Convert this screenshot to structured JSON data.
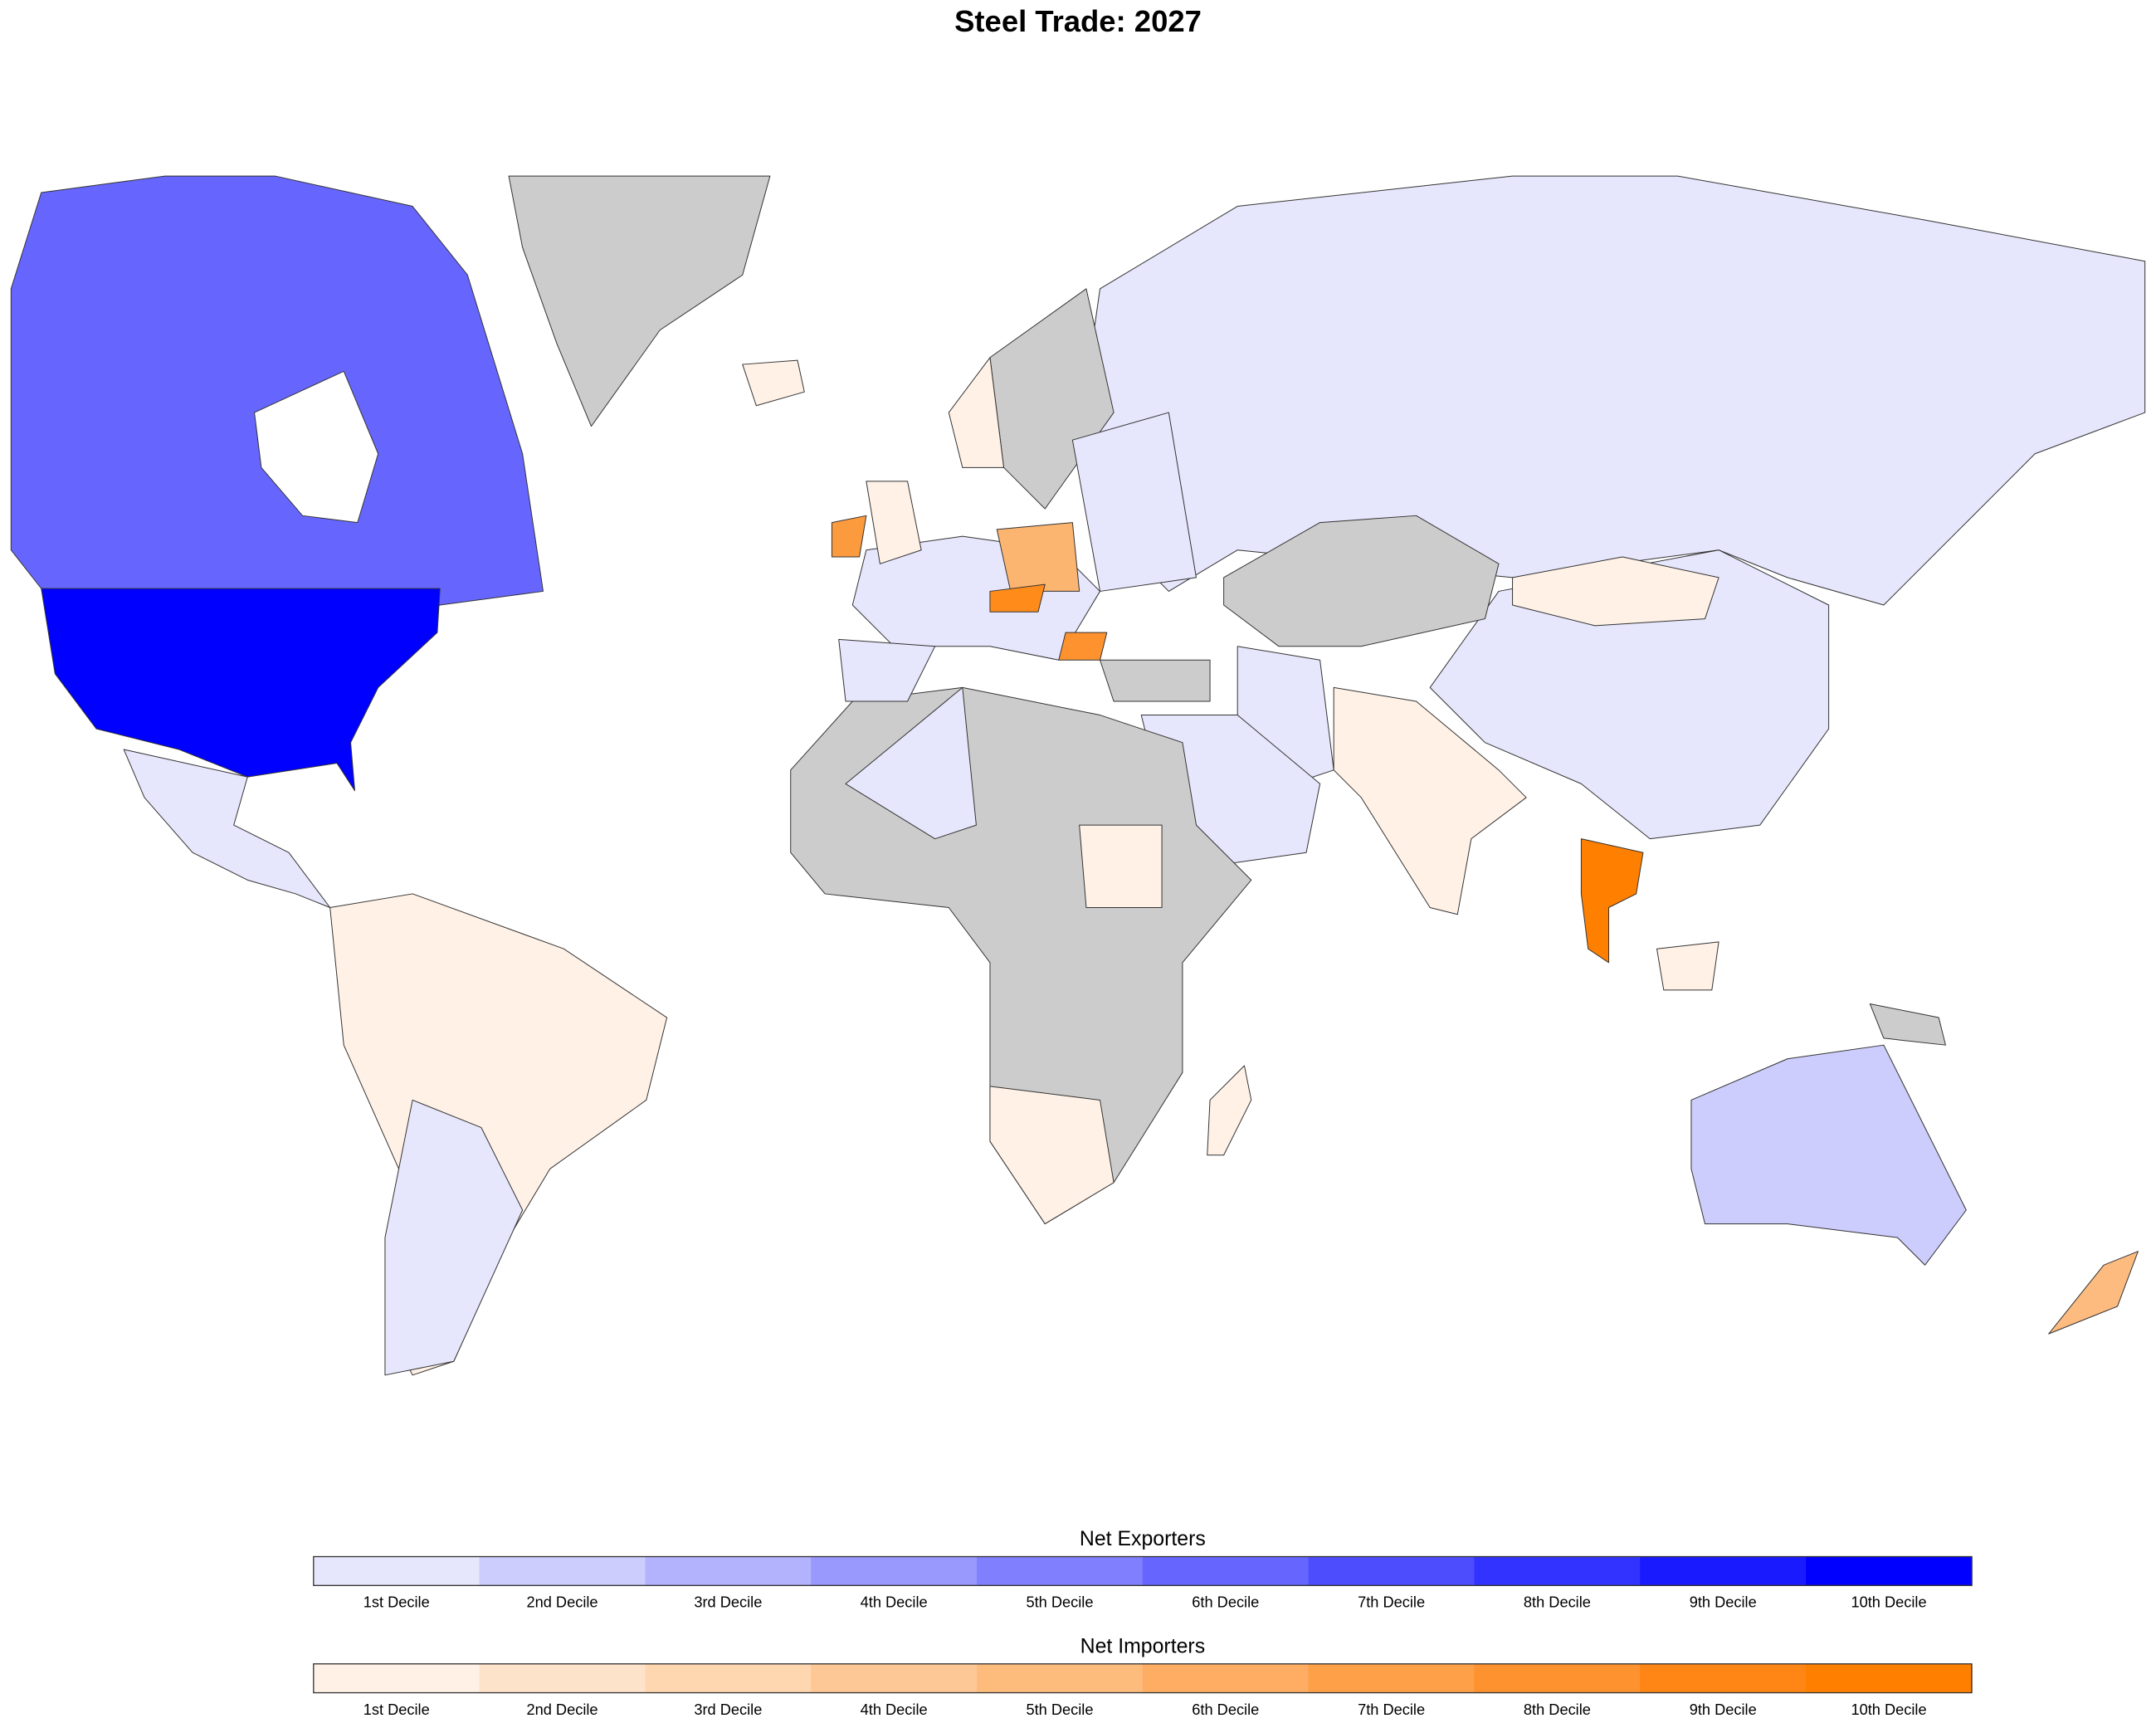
{
  "title": "Steel Trade: 2027",
  "legends": [
    {
      "title": "Net Exporters",
      "colors": [
        "#e6e6fc",
        "#ccccfd",
        "#b3b3fd",
        "#9999fd",
        "#8080fe",
        "#6666fe",
        "#4d4dfe",
        "#3333ff",
        "#1a1aff",
        "#0000ff"
      ],
      "labels": [
        "1st Decile",
        "2nd Decile",
        "3rd Decile",
        "4th Decile",
        "5th Decile",
        "6th Decile",
        "7th Decile",
        "8th Decile",
        "9th Decile",
        "10th Decile"
      ]
    },
    {
      "title": "Net Importers",
      "colors": [
        "#fff1e6",
        "#fee3cb",
        "#fed6b0",
        "#fdc896",
        "#fdbb7c",
        "#fead62",
        "#fea048",
        "#fe922e",
        "#ff8514",
        "#ff7f00"
      ],
      "labels": [
        "1st Decile",
        "2nd Decile",
        "3rd Decile",
        "4th Decile",
        "5th Decile",
        "6th Decile",
        "7th Decile",
        "8th Decile",
        "9th Decile",
        "10th Decile"
      ]
    }
  ]
}
